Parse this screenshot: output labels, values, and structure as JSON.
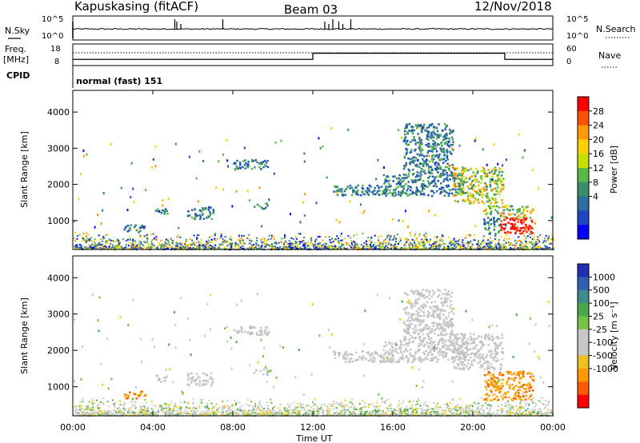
{
  "header": {
    "station": "Kapuskasing (fitACF)",
    "beam": "Beam 03",
    "date": "12/Nov/2018"
  },
  "nsky_panel": {
    "left_label": "N.Sky",
    "right_label": "N.Search",
    "left_ticks": [
      "10^5",
      "10^0"
    ],
    "right_ticks": [
      "10^5",
      "10^0"
    ]
  },
  "freq_panel": {
    "left_label_line1": "Freq.",
    "left_label_line2": "[MHz]",
    "right_label": "Nave",
    "left_ticks": [
      "18",
      "8"
    ],
    "right_ticks": [
      "60",
      "0"
    ],
    "freq_steps": [
      {
        "t": 0,
        "v": 10
      },
      {
        "t": 12,
        "v": 14
      },
      {
        "t": 21.6,
        "v": 10
      },
      {
        "t": 24,
        "v": 10
      }
    ]
  },
  "cpid_panel": {
    "label": "CPID",
    "value": "normal (fast) 151"
  },
  "chart_data": [
    {
      "type": "heatmap",
      "name": "power",
      "ylabel": "Slant Range [km]",
      "yticks": [
        1000,
        2000,
        3000,
        4000
      ],
      "ylim": [
        200,
        4600
      ],
      "xlim": [
        0,
        24
      ],
      "colorbar": {
        "label": "Power [dB]",
        "ticks": [
          "28",
          "24",
          "20",
          "16",
          "12",
          "8",
          "4"
        ],
        "colors": [
          "#ff0000",
          "#ff5000",
          "#ff9a00",
          "#ffd200",
          "#c8e000",
          "#5ab848",
          "#3a8f6a",
          "#2c6e9e",
          "#1f48c0",
          "#0000ff"
        ]
      }
    },
    {
      "type": "heatmap",
      "name": "velocity",
      "xlabel": "Time UT",
      "ylabel": "Slant Range [km]",
      "yticks": [
        1000,
        2000,
        3000,
        4000
      ],
      "ylim": [
        200,
        4600
      ],
      "xlim": [
        0,
        24
      ],
      "xticks": [
        "00:00",
        "04:00",
        "08:00",
        "12:00",
        "16:00",
        "20:00",
        "00:00"
      ],
      "colorbar": {
        "label": "Velocity [m s⁻¹]",
        "ticks": [
          "1000",
          "500",
          "100",
          "25",
          "-25",
          "-100",
          "-500",
          "-1000"
        ],
        "colors": [
          "#2030b0",
          "#2e5fb0",
          "#3f8a8a",
          "#4aa64a",
          "#76c242",
          "#c8c8c8",
          "#c8c8c8",
          "#f0c020",
          "#ff9a00",
          "#ff5a00",
          "#ff0000"
        ]
      }
    }
  ],
  "echo_regions": [
    {
      "t0": 2.5,
      "t1": 3.6,
      "r0": 700,
      "r1": 900
    },
    {
      "t0": 4.1,
      "t1": 4.7,
      "r0": 1150,
      "r1": 1350
    },
    {
      "t0": 5.7,
      "t1": 7.0,
      "r0": 1050,
      "r1": 1400
    },
    {
      "t0": 8.0,
      "t1": 9.8,
      "r0": 2450,
      "r1": 2700
    },
    {
      "t0": 9.0,
      "t1": 9.7,
      "r0": 1350,
      "r1": 1500
    },
    {
      "t0": 13.0,
      "t1": 16.0,
      "r0": 1700,
      "r1": 2000
    },
    {
      "t0": 15.5,
      "t1": 19.5,
      "r0": 1700,
      "r1": 2300
    },
    {
      "t0": 16.5,
      "t1": 19.0,
      "r0": 2300,
      "r1": 3700
    },
    {
      "t0": 19.0,
      "t1": 21.5,
      "r0": 1500,
      "r1": 2500
    },
    {
      "t0": 20.5,
      "t1": 23.0,
      "r0": 650,
      "r1": 1450
    }
  ]
}
